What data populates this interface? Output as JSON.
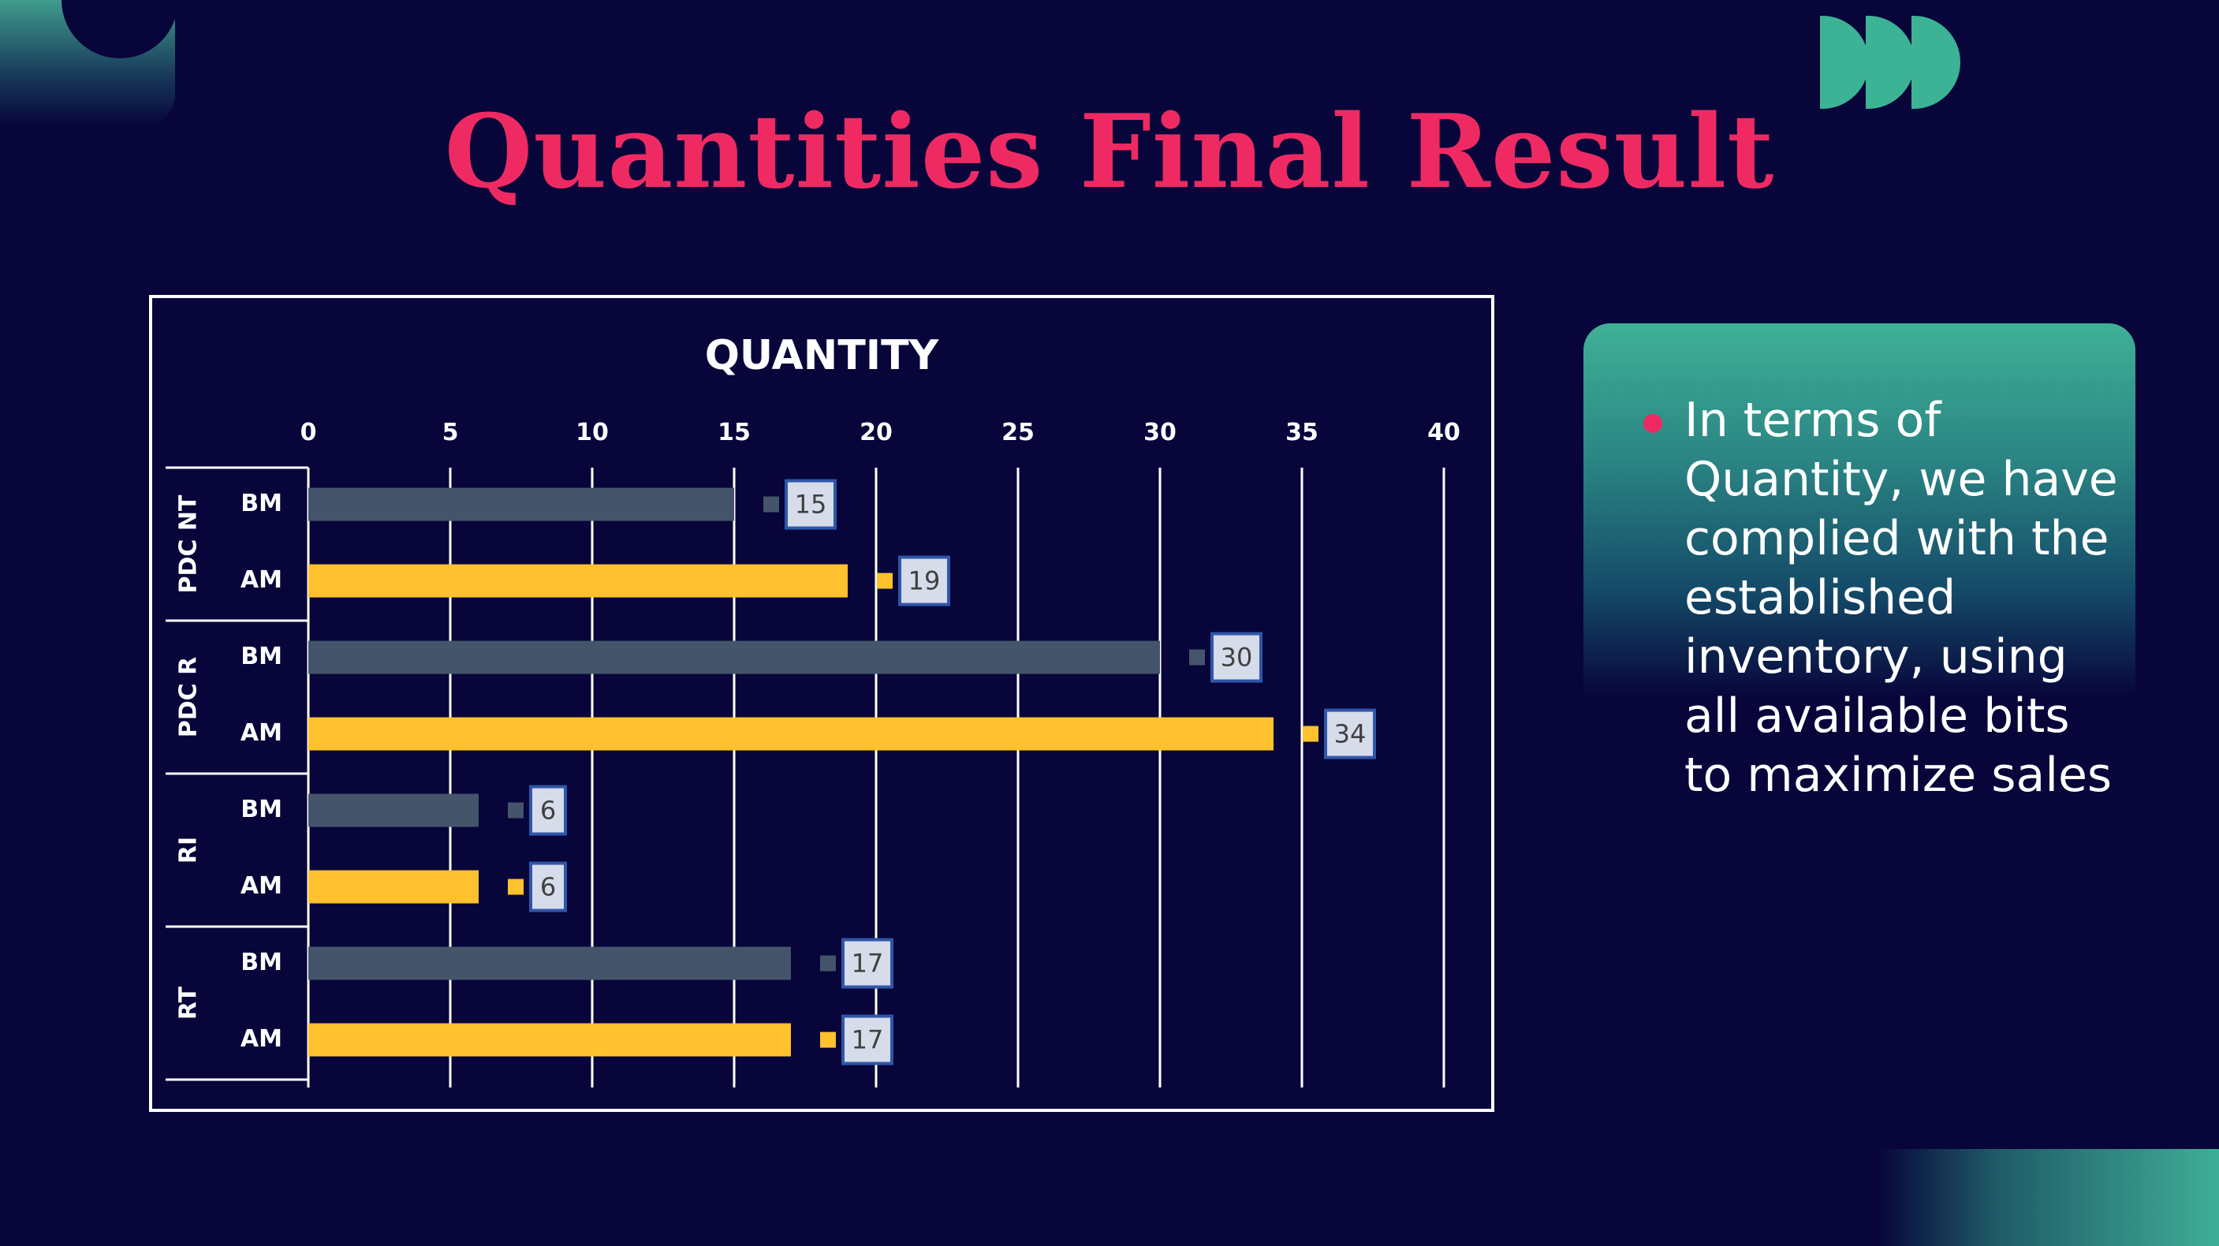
{
  "slide": {
    "title": "Quantities Final Result",
    "bullet": "In terms of Quantity, we have complied with the established inventory, using all available bits to maximize sales"
  },
  "colors": {
    "background": "#07053a",
    "title": "#ef2a63",
    "accent": "#3bb394",
    "bm_series": "#44546a",
    "am_series": "#ffc12d"
  },
  "chart_data": {
    "type": "bar",
    "orientation": "horizontal",
    "title": "QUANTITY",
    "xlim": [
      0,
      40
    ],
    "x_ticks": [
      0,
      5,
      10,
      15,
      20,
      25,
      30,
      35,
      40
    ],
    "grid": true,
    "groups": [
      {
        "name": "PDC NT",
        "bars": [
          {
            "label": "BM",
            "value": 15
          },
          {
            "label": "AM",
            "value": 19
          }
        ]
      },
      {
        "name": "PDC R",
        "bars": [
          {
            "label": "BM",
            "value": 30
          },
          {
            "label": "AM",
            "value": 34
          }
        ]
      },
      {
        "name": "RI",
        "bars": [
          {
            "label": "BM",
            "value": 6
          },
          {
            "label": "AM",
            "value": 6
          }
        ]
      },
      {
        "name": "RT",
        "bars": [
          {
            "label": "BM",
            "value": 17
          },
          {
            "label": "AM",
            "value": 17
          }
        ]
      }
    ]
  }
}
